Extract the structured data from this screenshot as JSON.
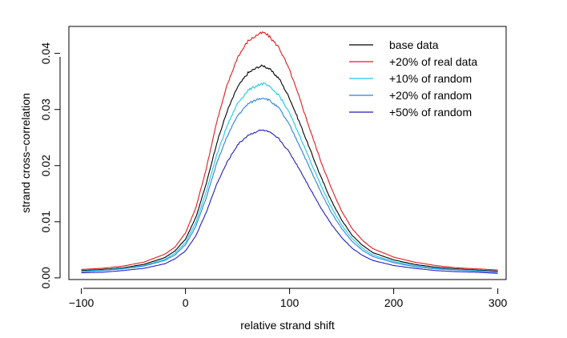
{
  "chart_data": {
    "type": "line",
    "title": "",
    "xlabel": "relative strand shift",
    "ylabel": "strand cross−correlation",
    "xlim": [
      -112,
      308
    ],
    "ylim": [
      -0.0003,
      0.0448
    ],
    "xticks": [
      -100,
      0,
      100,
      200,
      300
    ],
    "xtick_labels": [
      "−100",
      "0",
      "100",
      "200",
      "300"
    ],
    "yticks": [
      0.0,
      0.01,
      0.02,
      0.03,
      0.04
    ],
    "ytick_labels": [
      "0.00",
      "0.01",
      "0.02",
      "0.03",
      "0.04"
    ],
    "grid": false,
    "legend_position": "top-right",
    "x": [
      -100,
      -80,
      -60,
      -40,
      -20,
      -10,
      0,
      10,
      20,
      30,
      40,
      50,
      60,
      70,
      75,
      80,
      90,
      100,
      110,
      120,
      130,
      140,
      150,
      160,
      170,
      180,
      200,
      220,
      240,
      260,
      280,
      300
    ],
    "series": [
      {
        "name": "base data",
        "color": "#000000",
        "values": [
          0.0013,
          0.0015,
          0.0018,
          0.0024,
          0.0036,
          0.0048,
          0.0069,
          0.0108,
          0.0168,
          0.024,
          0.0297,
          0.034,
          0.0365,
          0.0376,
          0.0378,
          0.0373,
          0.0355,
          0.032,
          0.0275,
          0.0227,
          0.018,
          0.0138,
          0.0103,
          0.0076,
          0.0058,
          0.0045,
          0.0032,
          0.0024,
          0.0019,
          0.0016,
          0.0014,
          0.0012
        ]
      },
      {
        "name": "+20% of real data",
        "color": "#e31a1c",
        "values": [
          0.0015,
          0.0017,
          0.0021,
          0.0028,
          0.0042,
          0.0055,
          0.008,
          0.0125,
          0.0195,
          0.0278,
          0.0343,
          0.0393,
          0.0422,
          0.0434,
          0.0437,
          0.0431,
          0.041,
          0.037,
          0.0318,
          0.0262,
          0.0208,
          0.016,
          0.0119,
          0.0088,
          0.0067,
          0.0052,
          0.0037,
          0.0028,
          0.0022,
          0.0018,
          0.0016,
          0.0014
        ]
      },
      {
        "name": "+10% of random",
        "color": "#1fc8e3",
        "values": [
          0.0012,
          0.0014,
          0.0017,
          0.0022,
          0.0033,
          0.0044,
          0.0063,
          0.0099,
          0.0154,
          0.0219,
          0.0271,
          0.0311,
          0.0334,
          0.0344,
          0.0346,
          0.0341,
          0.0325,
          0.0293,
          0.0252,
          0.0208,
          0.0165,
          0.0126,
          0.0094,
          0.007,
          0.0053,
          0.0041,
          0.0029,
          0.0022,
          0.0017,
          0.0015,
          0.0013,
          0.0011
        ]
      },
      {
        "name": "+20% of random",
        "color": "#2b83d6",
        "values": [
          0.0011,
          0.0013,
          0.0016,
          0.0021,
          0.0031,
          0.0041,
          0.0059,
          0.0092,
          0.0143,
          0.0204,
          0.0252,
          0.0289,
          0.031,
          0.0319,
          0.0321,
          0.0317,
          0.0302,
          0.0272,
          0.0234,
          0.0193,
          0.0153,
          0.0117,
          0.0088,
          0.0065,
          0.0049,
          0.0038,
          0.0027,
          0.002,
          0.0016,
          0.0014,
          0.0012,
          0.001
        ]
      },
      {
        "name": "+50% of random",
        "color": "#1f1fbf",
        "values": [
          0.0009,
          0.001,
          0.0013,
          0.0017,
          0.0025,
          0.0034,
          0.0048,
          0.0075,
          0.0117,
          0.0167,
          0.0206,
          0.0237,
          0.0254,
          0.0262,
          0.0263,
          0.026,
          0.0247,
          0.0223,
          0.0192,
          0.0158,
          0.0125,
          0.0096,
          0.0072,
          0.0053,
          0.004,
          0.0031,
          0.0022,
          0.0017,
          0.0013,
          0.0011,
          0.001,
          0.0008
        ]
      }
    ]
  }
}
